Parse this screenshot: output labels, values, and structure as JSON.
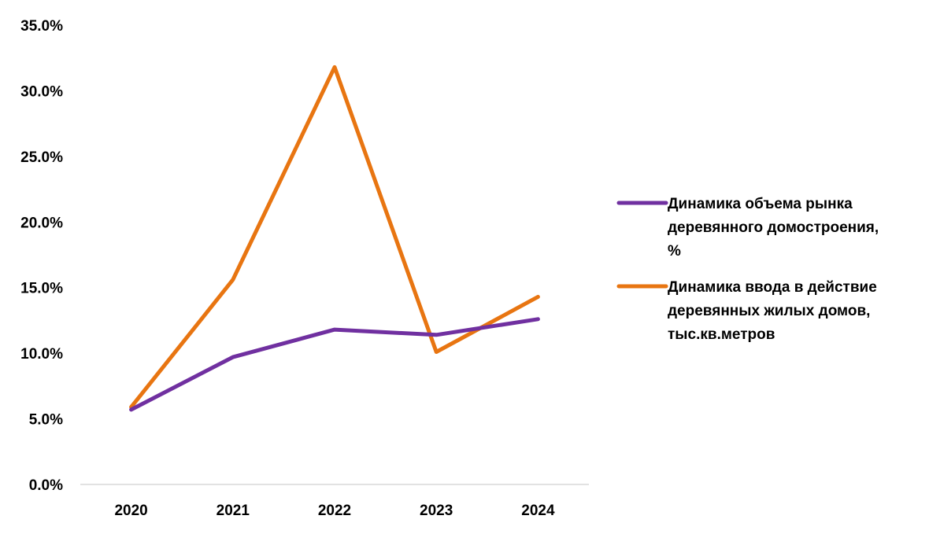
{
  "chart_data": {
    "type": "line",
    "title": "",
    "xlabel": "",
    "ylabel": "",
    "categories": [
      "2020",
      "2021",
      "2022",
      "2023",
      "2024"
    ],
    "ylim": [
      0,
      35
    ],
    "y_ticks": [
      0,
      5,
      10,
      15,
      20,
      25,
      30,
      35
    ],
    "y_tick_labels": [
      "0.0%",
      "5.0%",
      "10.0%",
      "15.0%",
      "20.0%",
      "25.0%",
      "30.0%",
      "35.0%"
    ],
    "grid": false,
    "legend_position": "right",
    "series": [
      {
        "name": "Динамика объема рынка деревянного домостроения, %",
        "name_lines": [
          "Динамика объема рынка",
          "деревянного домостроения,",
          "%"
        ],
        "color": "#7030a0",
        "values": [
          5.7,
          9.7,
          11.8,
          11.4,
          12.6
        ]
      },
      {
        "name": "Динамика ввода в действие деревянных жилых домов, тыс.кв.метров",
        "name_lines": [
          "Динамика ввода в действие",
          "деревянных жилых домов,",
          "тыс.кв.метров"
        ],
        "color": "#e87511",
        "values": [
          5.9,
          15.6,
          31.8,
          10.1,
          14.3
        ]
      }
    ]
  }
}
